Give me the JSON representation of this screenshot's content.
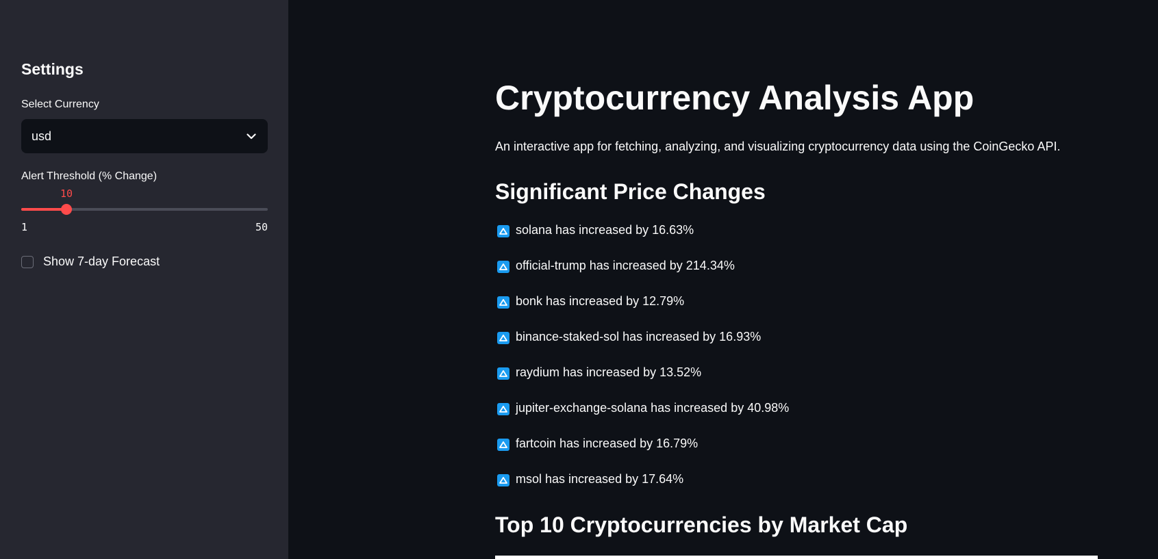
{
  "sidebar": {
    "title": "Settings",
    "currency_label": "Select Currency",
    "currency_value": "usd",
    "threshold_label": "Alert Threshold (% Change)",
    "threshold": {
      "value": 10,
      "min": 1,
      "max": 50,
      "value_text": "10",
      "min_text": "1",
      "max_text": "50"
    },
    "forecast_label": "Show 7-day Forecast",
    "forecast_checked": false
  },
  "main": {
    "title": "Cryptocurrency Analysis App",
    "description": "An interactive app for fetching, analyzing, and visualizing cryptocurrency data using the CoinGecko API.",
    "alerts_heading": "Significant Price Changes",
    "alerts": [
      "solana has increased by 16.63%",
      "official-trump has increased by 214.34%",
      "bonk has increased by 12.79%",
      "binance-staked-sol has increased by 16.93%",
      "raydium has increased by 13.52%",
      "jupiter-exchange-solana has increased by 40.98%",
      "fartcoin has increased by 16.79%",
      "msol has increased by 17.64%"
    ],
    "top10_heading": "Top 10 Cryptocurrencies by Market Cap"
  },
  "colors": {
    "accent": "#ff4b4b",
    "icon_blue": "#1a9bf0",
    "sidebar_bg": "#262730",
    "main_bg": "#0e1117"
  },
  "icons": {
    "select": "chevron-down-icon",
    "alert": "up-arrow-icon"
  }
}
